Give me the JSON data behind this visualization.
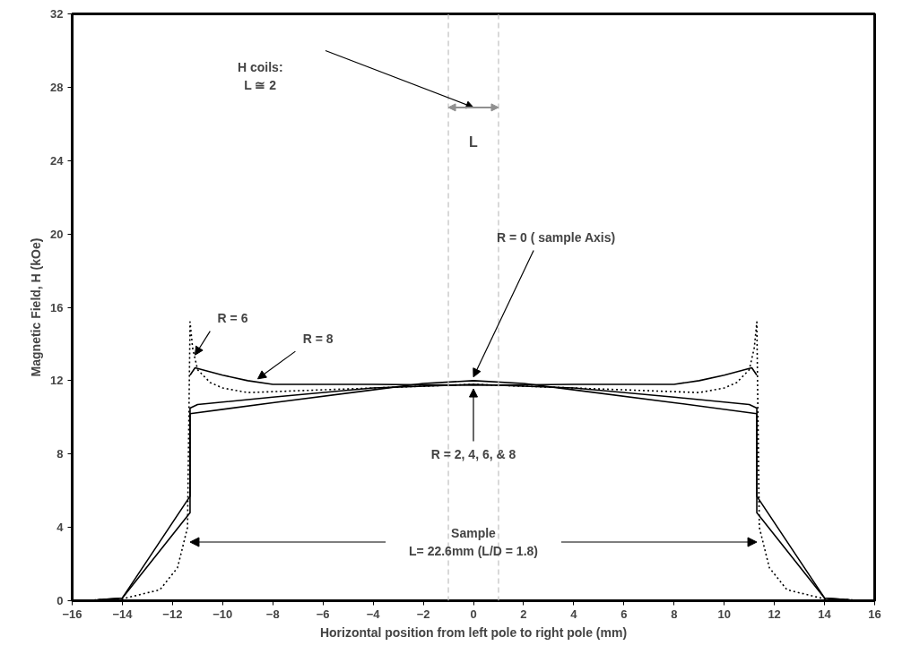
{
  "chart_data": {
    "type": "line",
    "xlabel": "Horizontal position from left pole to right pole (mm)",
    "ylabel": "Magnetic Field, H (kOe)",
    "xlim": [
      -16,
      16
    ],
    "ylim": [
      0,
      32
    ],
    "xticks": [
      -16,
      -14,
      -12,
      -10,
      -8,
      -6,
      -4,
      -2,
      0,
      2,
      4,
      6,
      8,
      10,
      12,
      14,
      16
    ],
    "yticks": [
      0,
      4,
      8,
      12,
      16,
      20,
      24,
      28,
      32
    ],
    "grid": false,
    "marker": "none",
    "series": [
      {
        "color": "#000000",
        "line_style": "solid",
        "x": [
          -16,
          -15,
          -14,
          -11.3,
          -11.3,
          -8,
          -4,
          -2,
          0,
          2,
          4,
          8,
          11.3,
          11.3,
          14,
          15,
          16
        ],
        "values": [
          0,
          0.05,
          0.15,
          4.8,
          10.2,
          10.8,
          11.5,
          11.85,
          12.0,
          11.85,
          11.5,
          10.8,
          10.2,
          4.8,
          0.15,
          0.05,
          0
        ]
      },
      {
        "color": "#000000",
        "line_style": "solid",
        "x": [
          -16,
          -15,
          -14,
          -11.3,
          -11.3,
          -11,
          -8,
          -4,
          0,
          4,
          8,
          11,
          11.3,
          11.3,
          14,
          15,
          16
        ],
        "values": [
          0,
          0.05,
          0.15,
          5.7,
          10.5,
          10.7,
          11.1,
          11.6,
          11.8,
          11.6,
          11.1,
          10.7,
          10.5,
          5.7,
          0.15,
          0.05,
          0
        ]
      },
      {
        "color": "#000000",
        "line_style": "dotted",
        "x": [
          -16,
          -15,
          -14,
          -12.5,
          -11.8,
          -11.4,
          -11.3,
          -11.2,
          -11,
          -10.5,
          -10,
          -9,
          -6,
          -2,
          0,
          2,
          6,
          9,
          10,
          10.5,
          11,
          11.2,
          11.3,
          11.4,
          11.8,
          12.5,
          14,
          15,
          16
        ],
        "values": [
          0,
          0.05,
          0.1,
          0.6,
          1.8,
          4.0,
          15.2,
          13.8,
          12.6,
          11.9,
          11.6,
          11.35,
          11.5,
          11.7,
          11.8,
          11.7,
          11.5,
          11.35,
          11.6,
          11.9,
          12.6,
          13.8,
          15.2,
          4.0,
          1.8,
          0.6,
          0.1,
          0.05,
          0
        ]
      },
      {
        "color": "#000000",
        "line_style": "solid",
        "x": [
          -11.3,
          -11.1,
          -10,
          -9,
          -8,
          -4,
          0,
          4,
          8,
          9,
          10,
          11.1,
          11.3
        ],
        "values": [
          12.3,
          12.7,
          12.3,
          12.0,
          11.8,
          11.8,
          11.75,
          11.8,
          11.8,
          12.0,
          12.3,
          12.7,
          12.3
        ]
      }
    ],
    "ref_lines": [
      {
        "axis": "x",
        "value": -1,
        "color": "#c0c0c0",
        "line_style": "dashed"
      },
      {
        "axis": "x",
        "value": 1,
        "color": "#c0c0c0",
        "line_style": "dashed"
      }
    ],
    "annotations": [
      "Sample\nL= 22.6mm (L/D = 1.8)",
      "H coils:\nL ≅ 2",
      "L",
      {
        "text": "R = 0 ( sample Axis)",
        "x": 0,
        "y": 12.0
      },
      {
        "text": "R = 2, 4, 6, & 8",
        "x": 0,
        "y": 11.75
      },
      {
        "text": "R = 6",
        "x": -11.1,
        "y": 13.2
      },
      {
        "text": "R = 8",
        "x": -8.6,
        "y": 11.9
      }
    ]
  }
}
